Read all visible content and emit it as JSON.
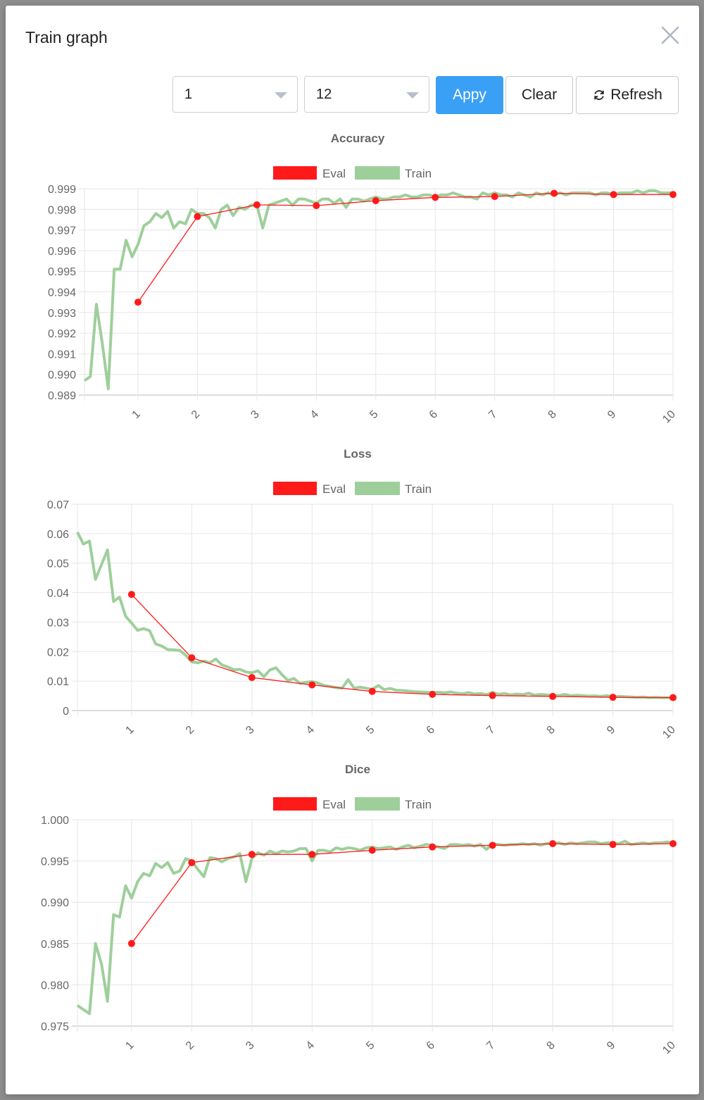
{
  "modal": {
    "title": "Train graph"
  },
  "toolbar": {
    "select_start": "1",
    "select_end": "12",
    "apply_label": "Appy",
    "clear_label": "Clear",
    "refresh_label": "Refresh"
  },
  "legend": {
    "eval_label": "Eval",
    "train_label": "Train"
  },
  "colors": {
    "eval": "#ff1a1a",
    "train": "#9ecf9b",
    "accent": "#3aa0f5"
  },
  "icons": {
    "close": "close-icon",
    "refresh": "refresh-icon",
    "caret": "chevron-down-icon"
  },
  "chart_data": [
    {
      "type": "line",
      "title": "Accuracy",
      "xlabel": "",
      "ylabel": "",
      "xlim": [
        0.1,
        10
      ],
      "ylim": [
        0.989,
        0.999
      ],
      "yticks": [
        0.989,
        0.99,
        0.991,
        0.992,
        0.993,
        0.994,
        0.995,
        0.996,
        0.997,
        0.998,
        0.999
      ],
      "ytick_labels": [
        "0.989",
        "0.990",
        "0.991",
        "0.992",
        "0.993",
        "0.994",
        "0.995",
        "0.996",
        "0.997",
        "0.998",
        "0.999"
      ],
      "xticks": [
        1,
        2,
        3,
        4,
        5,
        6,
        7,
        8,
        9,
        10
      ],
      "grid": true,
      "legend_position": "top-center",
      "series": [
        {
          "name": "Eval",
          "x": [
            1,
            2,
            3,
            4,
            5,
            6,
            7,
            8,
            9,
            10
          ],
          "y": [
            0.9935,
            0.99765,
            0.99822,
            0.99818,
            0.99842,
            0.99858,
            0.99862,
            0.99878,
            0.99872,
            0.99872
          ]
        },
        {
          "name": "Train",
          "x": [
            0.1,
            0.2,
            0.3,
            0.4,
            0.5,
            0.6,
            0.7,
            0.8,
            0.9,
            1.0,
            1.1,
            1.2,
            1.3,
            1.4,
            1.5,
            1.6,
            1.7,
            1.8,
            1.9,
            2.0,
            2.1,
            2.2,
            2.3,
            2.4,
            2.5,
            2.6,
            2.7,
            2.8,
            2.9,
            3.0,
            3.1,
            3.2,
            3.3,
            3.4,
            3.5,
            3.6,
            3.7,
            3.8,
            3.9,
            4.0,
            4.1,
            4.2,
            4.3,
            4.4,
            4.5,
            4.6,
            4.7,
            4.8,
            4.9,
            5.0,
            5.1,
            5.2,
            5.3,
            5.4,
            5.5,
            5.6,
            5.7,
            5.8,
            5.9,
            6.0,
            6.1,
            6.2,
            6.3,
            6.4,
            6.5,
            6.6,
            6.7,
            6.8,
            6.9,
            7.0,
            7.1,
            7.2,
            7.3,
            7.4,
            7.5,
            7.6,
            7.7,
            7.8,
            7.9,
            8.0,
            8.1,
            8.2,
            8.3,
            8.4,
            8.5,
            8.6,
            8.7,
            8.8,
            8.9,
            9.0,
            9.1,
            9.2,
            9.3,
            9.4,
            9.5,
            9.6,
            9.7,
            9.8,
            9.9,
            10.0
          ],
          "y": [
            0.9897,
            0.9899,
            0.9934,
            0.9915,
            0.9893,
            0.9951,
            0.9951,
            0.9965,
            0.9957,
            0.9963,
            0.9972,
            0.9974,
            0.9978,
            0.9976,
            0.9979,
            0.9971,
            0.9974,
            0.9973,
            0.998,
            0.9978,
            0.9978,
            0.9976,
            0.9971,
            0.998,
            0.9982,
            0.9977,
            0.9981,
            0.998,
            0.9982,
            0.9982,
            0.9971,
            0.9982,
            0.9983,
            0.9984,
            0.9985,
            0.9982,
            0.9985,
            0.9985,
            0.9984,
            0.9983,
            0.9985,
            0.9985,
            0.9983,
            0.9985,
            0.9981,
            0.9985,
            0.9985,
            0.9984,
            0.9985,
            0.9986,
            0.9985,
            0.9985,
            0.9986,
            0.9986,
            0.9987,
            0.9986,
            0.9986,
            0.9987,
            0.9987,
            0.9986,
            0.9987,
            0.9987,
            0.9988,
            0.9987,
            0.9986,
            0.9986,
            0.9985,
            0.9988,
            0.9987,
            0.9988,
            0.9987,
            0.9987,
            0.9986,
            0.9988,
            0.9987,
            0.9986,
            0.9988,
            0.9987,
            0.9988,
            0.9987,
            0.9988,
            0.9987,
            0.9988,
            0.9988,
            0.9988,
            0.9988,
            0.9987,
            0.9988,
            0.9988,
            0.9987,
            0.9988,
            0.9988,
            0.9988,
            0.9989,
            0.9988,
            0.9989,
            0.9989,
            0.9988,
            0.9988,
            0.9988
          ]
        }
      ]
    },
    {
      "type": "line",
      "title": "Loss",
      "xlabel": "",
      "ylabel": "",
      "xlim": [
        0.1,
        10
      ],
      "ylim": [
        0,
        0.07
      ],
      "yticks": [
        0,
        0.01,
        0.02,
        0.03,
        0.04,
        0.05,
        0.06,
        0.07
      ],
      "ytick_labels": [
        "0",
        "0.01",
        "0.02",
        "0.03",
        "0.04",
        "0.05",
        "0.06",
        "0.07"
      ],
      "xticks": [
        1,
        2,
        3,
        4,
        5,
        6,
        7,
        8,
        9,
        10
      ],
      "grid": true,
      "legend_position": "top-center",
      "series": [
        {
          "name": "Eval",
          "x": [
            1,
            2,
            3,
            4,
            5,
            6,
            7,
            8,
            9,
            10
          ],
          "y": [
            0.0394,
            0.0179,
            0.0112,
            0.0087,
            0.0065,
            0.0055,
            0.0051,
            0.0048,
            0.0045,
            0.0044
          ]
        },
        {
          "name": "Train",
          "x": [
            0.1,
            0.2,
            0.3,
            0.4,
            0.5,
            0.6,
            0.7,
            0.8,
            0.9,
            1.0,
            1.1,
            1.2,
            1.3,
            1.4,
            1.5,
            1.6,
            1.7,
            1.8,
            1.9,
            2.0,
            2.1,
            2.2,
            2.3,
            2.4,
            2.5,
            2.6,
            2.7,
            2.8,
            2.9,
            3.0,
            3.1,
            3.2,
            3.3,
            3.4,
            3.5,
            3.6,
            3.7,
            3.8,
            3.9,
            4.0,
            4.1,
            4.2,
            4.3,
            4.4,
            4.5,
            4.6,
            4.7,
            4.8,
            4.9,
            5.0,
            5.1,
            5.2,
            5.3,
            5.4,
            5.5,
            5.6,
            5.7,
            5.8,
            5.9,
            6.0,
            6.1,
            6.2,
            6.3,
            6.4,
            6.5,
            6.6,
            6.7,
            6.8,
            6.9,
            7.0,
            7.1,
            7.2,
            7.3,
            7.4,
            7.5,
            7.6,
            7.7,
            7.8,
            7.9,
            8.0,
            8.1,
            8.2,
            8.3,
            8.4,
            8.5,
            8.6,
            8.7,
            8.8,
            8.9,
            9.0,
            9.1,
            9.2,
            9.3,
            9.4,
            9.5,
            9.6,
            9.7,
            9.8,
            9.9,
            10.0
          ],
          "y": [
            0.0605,
            0.0565,
            0.0575,
            0.0445,
            0.0495,
            0.0545,
            0.037,
            0.0385,
            0.032,
            0.0297,
            0.0272,
            0.0278,
            0.0271,
            0.0226,
            0.0219,
            0.0207,
            0.0206,
            0.0204,
            0.0188,
            0.0165,
            0.0162,
            0.0168,
            0.0162,
            0.0175,
            0.0155,
            0.0148,
            0.0138,
            0.014,
            0.0131,
            0.0128,
            0.0135,
            0.0115,
            0.0138,
            0.0145,
            0.0122,
            0.0102,
            0.0109,
            0.0092,
            0.0096,
            0.0098,
            0.0093,
            0.0085,
            0.0082,
            0.0078,
            0.0076,
            0.0105,
            0.0076,
            0.0079,
            0.0076,
            0.0072,
            0.0085,
            0.0071,
            0.0075,
            0.0069,
            0.0068,
            0.0066,
            0.0064,
            0.0063,
            0.0062,
            0.0061,
            0.0062,
            0.006,
            0.0063,
            0.0059,
            0.0057,
            0.0061,
            0.0056,
            0.0058,
            0.0054,
            0.0062,
            0.0055,
            0.0058,
            0.0053,
            0.0056,
            0.0054,
            0.0059,
            0.0052,
            0.0055,
            0.0053,
            0.0052,
            0.0051,
            0.0055,
            0.005,
            0.0052,
            0.0051,
            0.0049,
            0.005,
            0.0048,
            0.0051,
            0.0047,
            0.0048,
            0.0047,
            0.0046,
            0.0045,
            0.0046,
            0.0044,
            0.0045,
            0.0044,
            0.0044,
            0.0043
          ]
        }
      ]
    },
    {
      "type": "line",
      "title": "Dice",
      "xlabel": "",
      "ylabel": "",
      "xlim": [
        0.1,
        10
      ],
      "ylim": [
        0.975,
        1.0
      ],
      "yticks": [
        0.975,
        0.98,
        0.985,
        0.99,
        0.995,
        1.0
      ],
      "ytick_labels": [
        "0.975",
        "0.980",
        "0.985",
        "0.990",
        "0.995",
        "1.000"
      ],
      "xticks": [
        1,
        2,
        3,
        4,
        5,
        6,
        7,
        8,
        9,
        10
      ],
      "grid": true,
      "legend_position": "top-center",
      "series": [
        {
          "name": "Eval",
          "x": [
            1,
            2,
            3,
            4,
            5,
            6,
            7,
            8,
            9,
            10
          ],
          "y": [
            0.985,
            0.9948,
            0.9958,
            0.9958,
            0.9963,
            0.9967,
            0.9969,
            0.9971,
            0.997,
            0.9971
          ]
        },
        {
          "name": "Train",
          "x": [
            0.1,
            0.2,
            0.3,
            0.4,
            0.5,
            0.6,
            0.7,
            0.8,
            0.9,
            1.0,
            1.1,
            1.2,
            1.3,
            1.4,
            1.5,
            1.6,
            1.7,
            1.8,
            1.9,
            2.0,
            2.1,
            2.2,
            2.3,
            2.4,
            2.5,
            2.6,
            2.7,
            2.8,
            2.9,
            3.0,
            3.1,
            3.2,
            3.3,
            3.4,
            3.5,
            3.6,
            3.7,
            3.8,
            3.9,
            4.0,
            4.1,
            4.2,
            4.3,
            4.4,
            4.5,
            4.6,
            4.7,
            4.8,
            4.9,
            5.0,
            5.1,
            5.2,
            5.3,
            5.4,
            5.5,
            5.6,
            5.7,
            5.8,
            5.9,
            6.0,
            6.1,
            6.2,
            6.3,
            6.4,
            6.5,
            6.6,
            6.7,
            6.8,
            6.9,
            7.0,
            7.1,
            7.2,
            7.3,
            7.4,
            7.5,
            7.6,
            7.7,
            7.8,
            7.9,
            8.0,
            8.1,
            8.2,
            8.3,
            8.4,
            8.5,
            8.6,
            8.7,
            8.8,
            8.9,
            9.0,
            9.1,
            9.2,
            9.3,
            9.4,
            9.5,
            9.6,
            9.7,
            9.8,
            9.9,
            10.0
          ],
          "y": [
            0.9775,
            0.977,
            0.9765,
            0.985,
            0.9825,
            0.978,
            0.9885,
            0.9882,
            0.992,
            0.9905,
            0.9925,
            0.9935,
            0.9932,
            0.9947,
            0.9942,
            0.9948,
            0.9935,
            0.9938,
            0.9953,
            0.995,
            0.994,
            0.9931,
            0.9954,
            0.9953,
            0.9949,
            0.9953,
            0.9955,
            0.9959,
            0.9925,
            0.9953,
            0.996,
            0.9957,
            0.9962,
            0.9959,
            0.9962,
            0.9961,
            0.9962,
            0.9965,
            0.9965,
            0.995,
            0.9963,
            0.9963,
            0.9961,
            0.9966,
            0.9964,
            0.9966,
            0.9965,
            0.9963,
            0.9966,
            0.9967,
            0.9965,
            0.9966,
            0.9967,
            0.9964,
            0.9967,
            0.9969,
            0.9966,
            0.9968,
            0.997,
            0.9969,
            0.9967,
            0.9965,
            0.997,
            0.997,
            0.9969,
            0.997,
            0.9968,
            0.997,
            0.9964,
            0.9971,
            0.997,
            0.9969,
            0.997,
            0.997,
            0.9971,
            0.997,
            0.9971,
            0.9969,
            0.9971,
            0.9971,
            0.9972,
            0.997,
            0.9972,
            0.9971,
            0.9972,
            0.9973,
            0.9973,
            0.9971,
            0.9972,
            0.9972,
            0.9971,
            0.9974,
            0.997,
            0.9971,
            0.9972,
            0.9971,
            0.9972,
            0.9972,
            0.9973,
            0.9972
          ]
        }
      ]
    }
  ]
}
